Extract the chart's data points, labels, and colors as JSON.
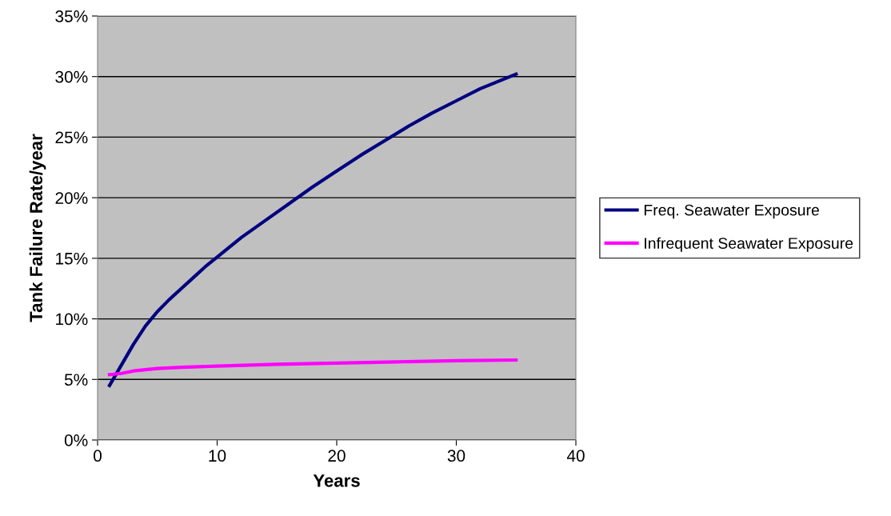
{
  "chart_data": {
    "type": "line",
    "xlabel": "Years",
    "ylabel": "Tank Failure Rate/year",
    "xlim": [
      0,
      40
    ],
    "xticks": [
      0,
      10,
      20,
      30,
      40
    ],
    "ylim": [
      0,
      35
    ],
    "yticks": [
      {
        "value": 0,
        "label": "0%"
      },
      {
        "value": 5,
        "label": "5%"
      },
      {
        "value": 10,
        "label": "10%"
      },
      {
        "value": 15,
        "label": "15%"
      },
      {
        "value": 20,
        "label": "20%"
      },
      {
        "value": 25,
        "label": "25%"
      },
      {
        "value": 30,
        "label": "30%"
      },
      {
        "value": 35,
        "label": "35%"
      }
    ],
    "grid": "y",
    "legend": "right",
    "marker": "none",
    "line_style": "solid",
    "series": [
      {
        "name": "Freq. Seawater Exposure",
        "color": "#000080",
        "x": [
          1,
          2,
          3,
          4,
          5,
          6,
          7,
          8,
          9,
          10,
          12,
          14,
          16,
          18,
          20,
          22,
          24,
          26,
          28,
          30,
          32,
          35
        ],
        "values": [
          4.5,
          6.2,
          7.9,
          9.4,
          10.6,
          11.6,
          12.5,
          13.4,
          14.3,
          15.1,
          16.7,
          18.1,
          19.5,
          20.9,
          22.2,
          23.5,
          24.7,
          25.9,
          27.0,
          28.0,
          29.0,
          30.2
        ]
      },
      {
        "name": "Infrequent Seawater Exposure",
        "color": "#ff00ff",
        "x": [
          1,
          2,
          3,
          4,
          5,
          7,
          10,
          15,
          20,
          25,
          30,
          35
        ],
        "values": [
          5.4,
          5.5,
          5.7,
          5.8,
          5.9,
          6.0,
          6.1,
          6.25,
          6.35,
          6.45,
          6.55,
          6.6
        ]
      }
    ]
  }
}
